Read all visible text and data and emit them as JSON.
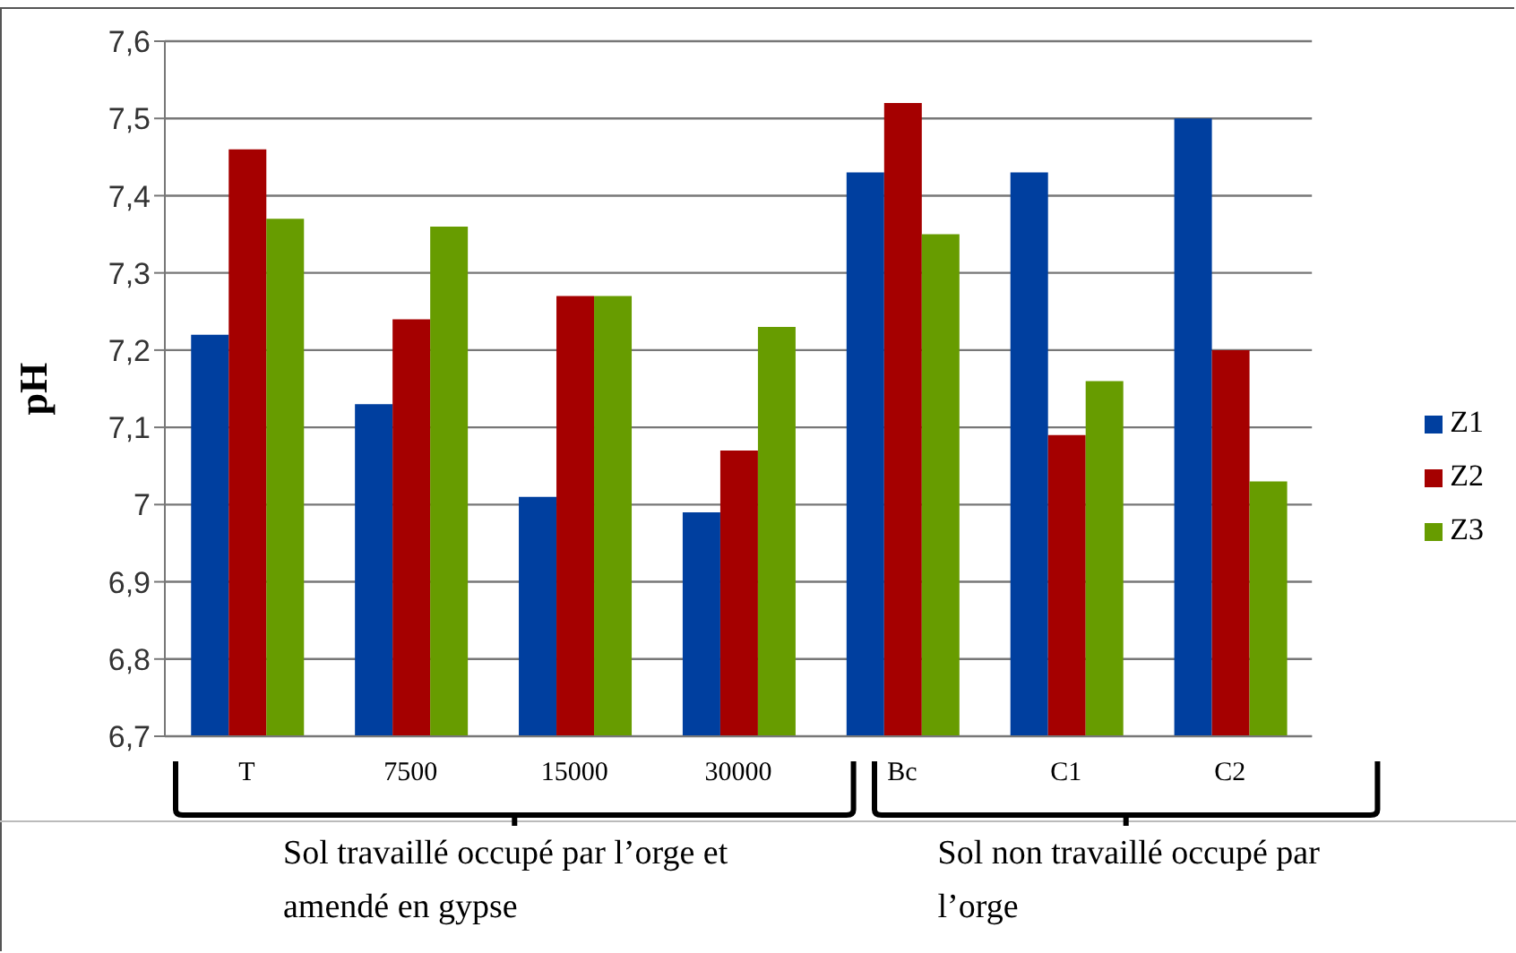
{
  "chart_data": {
    "type": "bar",
    "ylabel": "pH",
    "categories": [
      "T",
      "7500",
      "15000",
      "30000",
      "Bc",
      "C1",
      "C2"
    ],
    "series": [
      {
        "name": "Z1",
        "color": "#003f9f",
        "values": [
          7.22,
          7.13,
          7.01,
          6.99,
          7.43,
          7.43,
          7.5
        ]
      },
      {
        "name": "Z2",
        "color": "#a50000",
        "values": [
          7.46,
          7.24,
          7.27,
          7.07,
          7.52,
          7.09,
          7.2
        ]
      },
      {
        "name": "Z3",
        "color": "#679c00",
        "values": [
          7.37,
          7.36,
          7.27,
          7.23,
          7.35,
          7.16,
          7.03
        ]
      }
    ],
    "ylim": [
      6.7,
      7.6
    ],
    "yticks": [
      {
        "value": 6.7,
        "label": "6,7"
      },
      {
        "value": 6.8,
        "label": "6,8"
      },
      {
        "value": 6.9,
        "label": "6,9"
      },
      7,
      {
        "value": 7.1,
        "label": "7,1"
      },
      {
        "value": 7.2,
        "label": "7,2"
      },
      {
        "value": 7.3,
        "label": "7,3"
      },
      {
        "value": 7.4,
        "label": "7,4"
      },
      {
        "value": 7.5,
        "label": "7,5"
      },
      {
        "value": 7.6,
        "label": "7,6"
      }
    ],
    "grid": "y",
    "legend": "right",
    "annotations": [
      "Sol travaillé occupé par l’orge et amendé en gypse",
      "Sol non travaillé occupé par l’orge"
    ]
  }
}
